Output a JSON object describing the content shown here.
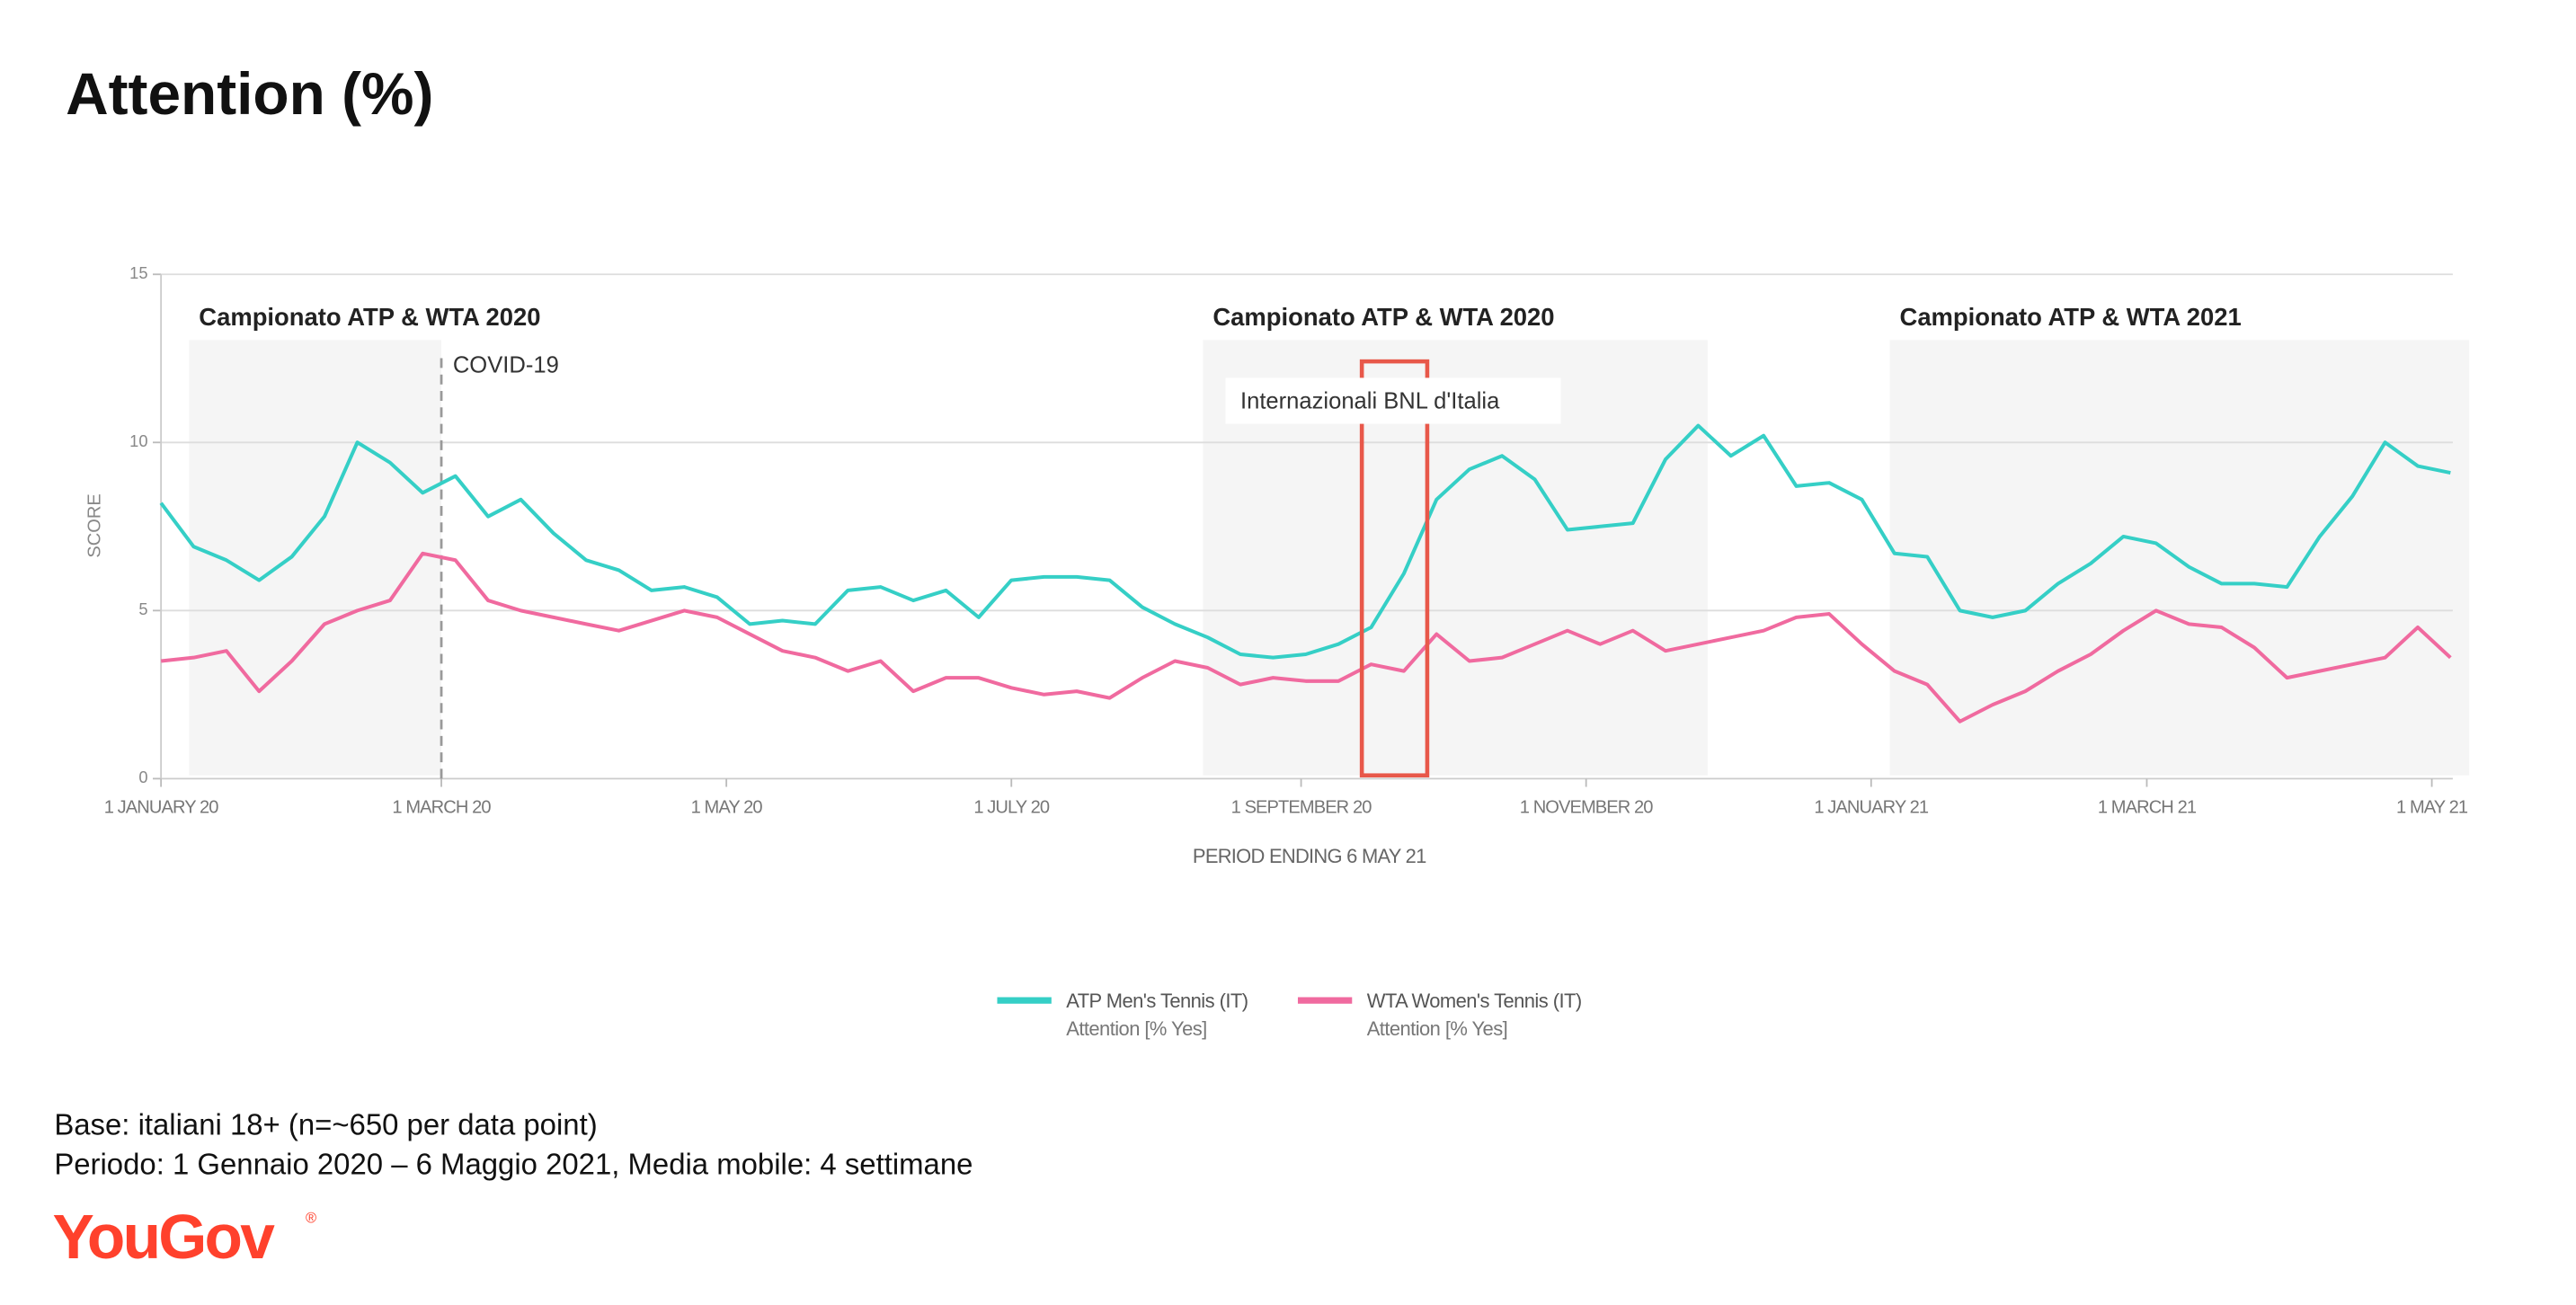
{
  "chart_data": {
    "type": "line",
    "title": "Attention (%)",
    "ylabel": "SCORE",
    "xlabel": "PERIOD ENDING 6 MAY 21",
    "x": [
      "2020-01-01",
      "2020-01-08",
      "2020-01-15",
      "2020-01-22",
      "2020-01-29",
      "2020-02-05",
      "2020-02-12",
      "2020-02-19",
      "2020-02-26",
      "2020-03-04",
      "2020-03-11",
      "2020-03-18",
      "2020-03-25",
      "2020-04-01",
      "2020-04-08",
      "2020-04-15",
      "2020-04-22",
      "2020-04-29",
      "2020-05-06",
      "2020-05-13",
      "2020-05-20",
      "2020-05-27",
      "2020-06-03",
      "2020-06-10",
      "2020-06-17",
      "2020-06-24",
      "2020-07-01",
      "2020-07-08",
      "2020-07-15",
      "2020-07-22",
      "2020-07-29",
      "2020-08-05",
      "2020-08-12",
      "2020-08-19",
      "2020-08-26",
      "2020-09-02",
      "2020-09-09",
      "2020-09-16",
      "2020-09-23",
      "2020-09-30",
      "2020-10-07",
      "2020-10-14",
      "2020-10-21",
      "2020-10-28",
      "2020-11-04",
      "2020-11-11",
      "2020-11-18",
      "2020-11-25",
      "2020-12-02",
      "2020-12-09",
      "2020-12-16",
      "2020-12-23",
      "2020-12-30",
      "2021-01-06",
      "2021-01-13",
      "2021-01-20",
      "2021-01-27",
      "2021-02-03",
      "2021-02-10",
      "2021-02-17",
      "2021-02-24",
      "2021-03-03",
      "2021-03-10",
      "2021-03-17",
      "2021-03-24",
      "2021-03-31",
      "2021-04-07",
      "2021-04-14",
      "2021-04-21",
      "2021-04-28",
      "2021-05-05"
    ],
    "series": [
      {
        "name": "ATP Men's Tennis (IT)",
        "metric": "Attention [% Yes]",
        "color": "#35cfc6",
        "values": [
          8.2,
          6.9,
          6.5,
          5.9,
          6.6,
          7.8,
          10.0,
          9.4,
          8.5,
          9.0,
          7.8,
          8.3,
          7.3,
          6.5,
          6.2,
          5.6,
          5.7,
          5.4,
          4.6,
          4.7,
          4.6,
          5.6,
          5.7,
          5.3,
          5.6,
          4.8,
          5.9,
          6.0,
          6.0,
          5.9,
          5.1,
          4.6,
          4.2,
          3.7,
          3.6,
          3.7,
          4.0,
          4.5,
          6.1,
          8.3,
          9.2,
          9.6,
          8.9,
          7.4,
          7.5,
          7.6,
          9.5,
          10.5,
          9.6,
          10.2,
          8.7,
          8.8,
          8.3,
          6.7,
          6.6,
          5.0,
          4.8,
          5.0,
          5.8,
          6.4,
          7.2,
          7.0,
          6.3,
          5.8,
          5.8,
          5.7,
          7.2,
          8.4,
          10.0,
          9.3,
          9.1
        ]
      },
      {
        "name": "WTA Women's Tennis (IT)",
        "metric": "Attention [% Yes]",
        "color": "#f06a9f",
        "values": [
          3.5,
          3.6,
          3.8,
          2.6,
          3.5,
          4.6,
          5.0,
          5.3,
          6.7,
          6.5,
          5.3,
          5.0,
          4.8,
          4.6,
          4.4,
          4.7,
          5.0,
          4.8,
          4.3,
          3.8,
          3.6,
          3.2,
          3.5,
          2.6,
          3.0,
          3.0,
          2.7,
          2.5,
          2.6,
          2.4,
          3.0,
          3.5,
          3.3,
          2.8,
          3.0,
          2.9,
          2.9,
          3.4,
          3.2,
          4.3,
          3.5,
          3.6,
          4.0,
          4.4,
          4.0,
          4.4,
          3.8,
          4.0,
          4.2,
          4.4,
          4.8,
          4.9,
          4.0,
          3.2,
          2.8,
          1.7,
          2.2,
          2.6,
          3.2,
          3.7,
          4.4,
          5.0,
          4.6,
          4.5,
          3.9,
          3.0,
          3.2,
          3.4,
          3.6,
          4.5,
          3.6
        ]
      }
    ],
    "xlim": [
      "2020-01-01",
      "2021-05-09"
    ],
    "xticks": [
      {
        "value": "2020-01-01",
        "label": "1 JANUARY 20"
      },
      {
        "value": "2020-03-01",
        "label": "1 MARCH 20"
      },
      {
        "value": "2020-05-01",
        "label": "1 MAY 20"
      },
      {
        "value": "2020-07-01",
        "label": "1 JULY 20"
      },
      {
        "value": "2020-09-01",
        "label": "1 SEPTEMBER 20"
      },
      {
        "value": "2020-11-01",
        "label": "1 NOVEMBER 20"
      },
      {
        "value": "2021-01-01",
        "label": "1 JANUARY 21"
      },
      {
        "value": "2021-03-01",
        "label": "1 MARCH 21"
      },
      {
        "value": "2021-05-01",
        "label": "1 MAY 21"
      }
    ],
    "ylim": [
      0,
      15
    ],
    "yticks": [
      0,
      5,
      10,
      15
    ],
    "grid": true,
    "regions": [
      {
        "label": "Campionato ATP & WTA 2020",
        "start": "2020-01-07",
        "end": "2020-03-01"
      },
      {
        "label": "Campionato ATP & WTA 2020",
        "start": "2020-08-11",
        "end": "2020-11-27"
      },
      {
        "label": "Campionato ATP & WTA 2021",
        "start": "2021-01-05",
        "end": "2021-05-09"
      }
    ],
    "events": [
      {
        "label": "COVID-19",
        "date": "2020-03-01"
      }
    ],
    "highlight": {
      "label": "Internazionali BNL d'Italia",
      "start": "2020-09-14",
      "end": "2020-09-28",
      "color": "#e8584a"
    }
  },
  "footnotes": [
    "Base: italiani 18+ (n=~650 per data point)",
    "Periodo: 1 Gennaio 2020 – 6 Maggio 2021, Media mobile: 4 settimane"
  ],
  "logo": "YouGov",
  "logo_mark": "®"
}
